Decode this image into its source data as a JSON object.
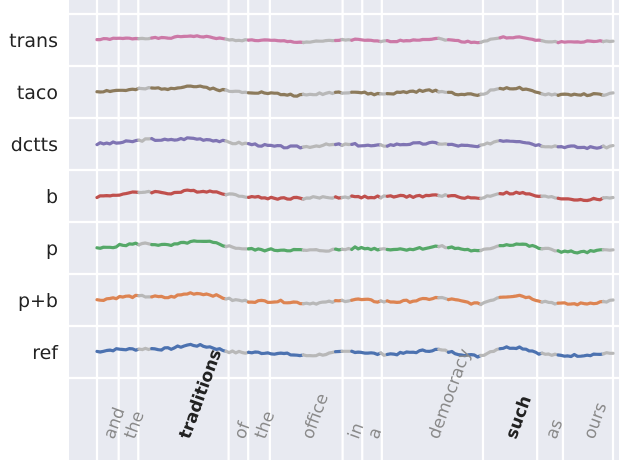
{
  "chart_data": {
    "type": "line",
    "rows": [
      {
        "label": "trans",
        "color": "#cc79a7",
        "baseline": 0.55,
        "amp": 0.35,
        "seed": 1
      },
      {
        "label": "taco",
        "color": "#8c7a5b",
        "baseline": 0.45,
        "amp": 0.55,
        "seed": 2
      },
      {
        "label": "dctts",
        "color": "#7f74b3",
        "baseline": 0.5,
        "amp": 0.6,
        "seed": 3
      },
      {
        "label": "b",
        "color": "#c0504d",
        "baseline": 0.55,
        "amp": 0.55,
        "seed": 4
      },
      {
        "label": "p",
        "color": "#55a868",
        "baseline": 0.5,
        "amp": 0.6,
        "seed": 5
      },
      {
        "label": "p+b",
        "color": "#dd8452",
        "baseline": 0.5,
        "amp": 0.6,
        "seed": 6
      },
      {
        "label": "ref",
        "color": "#4c72b0",
        "baseline": 0.45,
        "amp": 0.6,
        "seed": 7
      }
    ],
    "words": [
      {
        "text": "and",
        "start": 0.0,
        "end": 0.042,
        "bold": false
      },
      {
        "text": "the",
        "start": 0.042,
        "end": 0.08,
        "bold": false
      },
      {
        "text": "traditions",
        "start": 0.08,
        "end": 0.255,
        "bold": true
      },
      {
        "text": "of",
        "start": 0.255,
        "end": 0.293,
        "bold": false
      },
      {
        "text": "the",
        "start": 0.293,
        "end": 0.335,
        "bold": false
      },
      {
        "text": "office",
        "start": 0.335,
        "end": 0.476,
        "bold": false
      },
      {
        "text": "in",
        "start": 0.476,
        "end": 0.514,
        "bold": false
      },
      {
        "text": "a",
        "start": 0.514,
        "end": 0.552,
        "bold": false
      },
      {
        "text": "democracy",
        "start": 0.552,
        "end": 0.748,
        "bold": false
      },
      {
        "text": "such",
        "start": 0.748,
        "end": 0.853,
        "bold": true
      },
      {
        "text": "as",
        "start": 0.853,
        "end": 0.903,
        "bold": false
      },
      {
        "text": "ours",
        "start": 0.903,
        "end": 1.0,
        "bold": false
      }
    ],
    "unvoiced_color": "#b8b8b8",
    "word_text_color": "#8a8a8a",
    "bold_word_color": "#222222",
    "background": "#e8eaf1"
  }
}
